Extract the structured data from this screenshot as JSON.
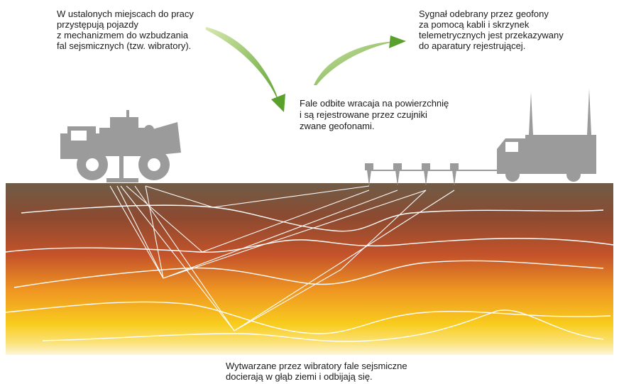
{
  "annotations": {
    "vibrators": {
      "lines": [
        "W ustalonych miejscach do pracy",
        "przystępują pojazdy",
        "z mechanizmem do wzbudzania",
        "fal sejsmicznych (tzw. wibratory)."
      ]
    },
    "signal": {
      "lines": [
        "Sygnał odebrany przez geofony",
        "za pomocą kabli i skrzynek",
        "telemetrycznych jest przekazywany",
        "do aparatury rejestrującej."
      ]
    },
    "reflected": {
      "lines": [
        "Fale odbite wracaja na powierzchnię",
        "i są rejestrowane przez czujniki",
        "zwane geofonami."
      ]
    },
    "propagation": {
      "lines": [
        "Wytwarzane przez wibratory fale sejsmiczne",
        "docierają w głąb ziemi i odbijają się."
      ]
    }
  }
}
